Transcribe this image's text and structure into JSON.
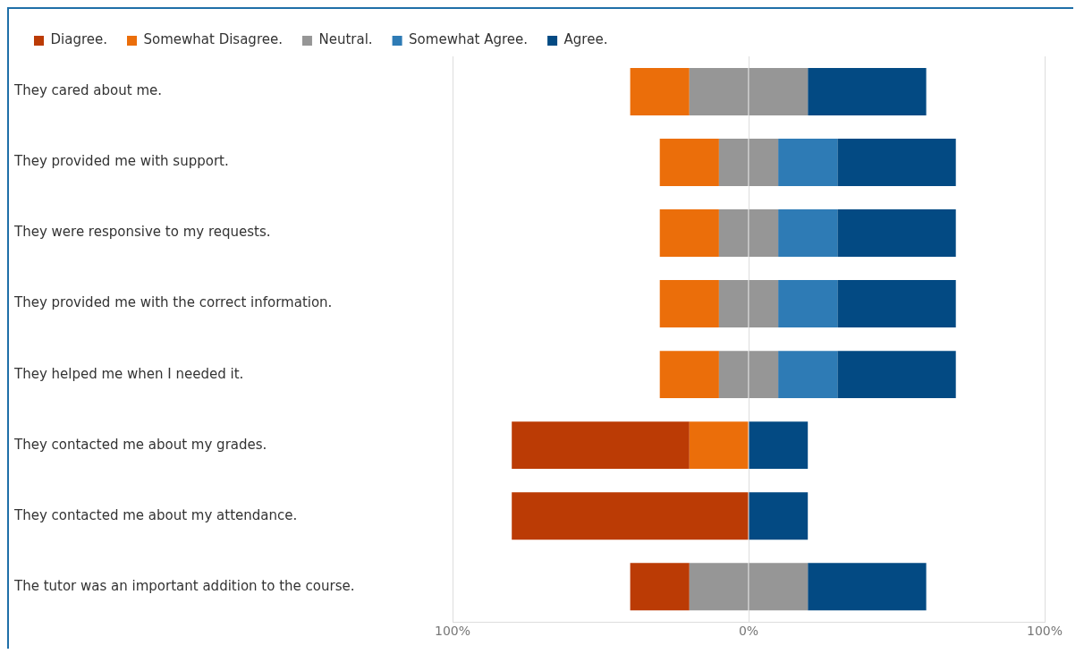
{
  "chart_data": {
    "type": "bar",
    "orientation": "horizontal",
    "stacked": true,
    "categories": [
      "They cared about me.",
      "They provided me with support.",
      "They were responsive to my requests.",
      "They provided me with the correct information.",
      "They helped me when I needed it.",
      "They contacted me about my grades.",
      "They contacted me about my attendance.",
      "The tutor was an important addition to the course."
    ],
    "series": [
      {
        "color": "#969696",
        "values": [
          -20,
          -10,
          -10,
          -10,
          -10,
          null,
          null,
          -20
        ]
      },
      {
        "name": "Somewhat Disagree.",
        "color": "#eb6e0a",
        "values": [
          -20,
          -20,
          -20,
          -20,
          -20,
          -20,
          null,
          null
        ]
      },
      {
        "name": "Diagree.",
        "color": "#bb3b05",
        "values": [
          null,
          null,
          null,
          null,
          null,
          -60,
          -80,
          -20
        ]
      },
      {
        "name": "Neutral.",
        "color": "#969696",
        "values": [
          20,
          10,
          10,
          10,
          10,
          null,
          null,
          20
        ]
      },
      {
        "name": "Somewhat Agree.",
        "color": "#2e7bb5",
        "values": [
          null,
          20,
          20,
          20,
          20,
          null,
          null,
          null
        ]
      },
      {
        "name": "Agree.",
        "color": "#034a83",
        "values": [
          40,
          40,
          40,
          40,
          40,
          20,
          20,
          40
        ]
      }
    ],
    "xlim": [
      -100,
      100
    ],
    "xticks": [
      {
        "value": -100,
        "label": "100%"
      },
      {
        "value": 0,
        "label": "0%"
      },
      {
        "value": 100,
        "label": "100%"
      }
    ],
    "grid": "x",
    "legend": "top left"
  }
}
